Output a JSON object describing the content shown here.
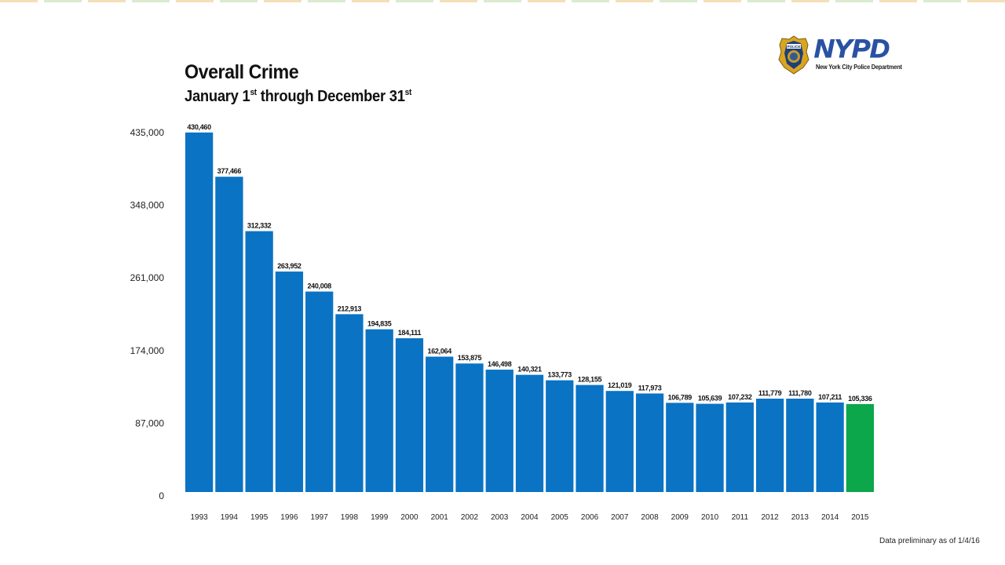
{
  "header": {
    "title": "Overall Crime",
    "subtitle_parts": [
      "January 1",
      "st",
      " through December 31",
      "st"
    ]
  },
  "logo": {
    "wordmark": "NYPD",
    "tagline": "New York City Police Department",
    "badge_text": "POLICE"
  },
  "footnote": "Data preliminary as of 1/4/16",
  "colors": {
    "bar": "#0a73c4",
    "highlight": "#0ca64b",
    "logo_blue": "#2952a3",
    "badge_gold": "#d9a520"
  },
  "chart_data": {
    "type": "bar",
    "title": "Overall Crime",
    "subtitle": "January 1st through December 31st",
    "xlabel": "",
    "ylabel": "",
    "ylim": [
      0,
      435000
    ],
    "yticks": [
      0,
      87000,
      174000,
      261000,
      348000,
      435000
    ],
    "ytick_labels": [
      "0",
      "87,000",
      "174,000",
      "261,000",
      "348,000",
      "435,000"
    ],
    "grid": false,
    "legend": "none",
    "categories": [
      "1993",
      "1994",
      "1995",
      "1996",
      "1997",
      "1998",
      "1999",
      "2000",
      "2001",
      "2002",
      "2003",
      "2004",
      "2005",
      "2006",
      "2007",
      "2008",
      "2009",
      "2010",
      "2011",
      "2012",
      "2013",
      "2014",
      "2015"
    ],
    "values": [
      430460,
      377466,
      312332,
      263952,
      240008,
      212913,
      194835,
      184111,
      162064,
      153875,
      146498,
      140321,
      133773,
      128155,
      121019,
      117973,
      106789,
      105639,
      107232,
      111779,
      111780,
      107211,
      105336
    ],
    "value_labels": [
      "430,460",
      "377,466",
      "312,332",
      "263,952",
      "240,008",
      "212,913",
      "194,835",
      "184,111",
      "162,064",
      "153,875",
      "146,498",
      "140,321",
      "133,773",
      "128,155",
      "121,019",
      "117,973",
      "106,789",
      "105,639",
      "107,232",
      "111,779",
      "111,780",
      "107,211",
      "105,336"
    ],
    "highlight_index": 22
  }
}
